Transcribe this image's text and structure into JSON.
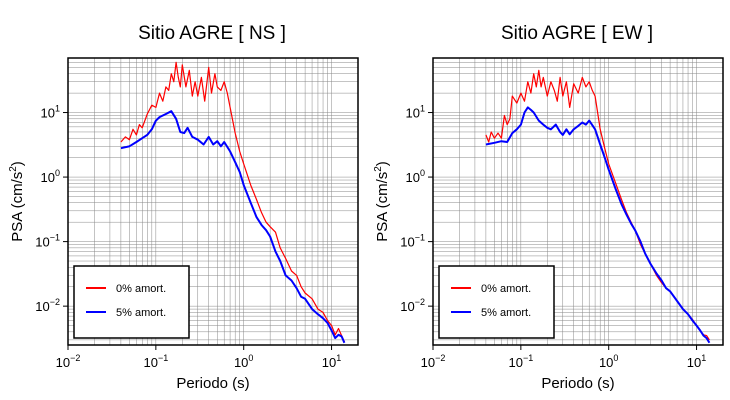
{
  "chart_data": [
    {
      "type": "line",
      "title": "Sitio AGRE [ NS ]",
      "xlabel": "Periodo (s)",
      "ylabel_base": "PSA (cm/s",
      "ylabel_sup": "2",
      "ylabel_end": ")",
      "xscale": "log",
      "yscale": "log",
      "xlim": [
        0.01,
        20
      ],
      "ylim": [
        0.0025,
        70
      ],
      "grid": true,
      "legend_position": "bottom-left",
      "x_ticks": [
        {
          "base": "10",
          "exp": "−2"
        },
        {
          "base": "10",
          "exp": "−1"
        },
        {
          "base": "10",
          "exp": "0"
        },
        {
          "base": "10",
          "exp": "1"
        }
      ],
      "y_ticks": [
        {
          "base": "10",
          "exp": "−2"
        },
        {
          "base": "10",
          "exp": "−1"
        },
        {
          "base": "10",
          "exp": "0"
        },
        {
          "base": "10",
          "exp": "1"
        }
      ],
      "series": [
        {
          "name": "0% amort.",
          "color": "#ff0000",
          "x": [
            0.04,
            0.045,
            0.05,
            0.055,
            0.06,
            0.065,
            0.07,
            0.08,
            0.09,
            0.1,
            0.11,
            0.12,
            0.13,
            0.14,
            0.15,
            0.16,
            0.17,
            0.18,
            0.19,
            0.2,
            0.22,
            0.24,
            0.26,
            0.28,
            0.3,
            0.33,
            0.36,
            0.4,
            0.43,
            0.47,
            0.5,
            0.55,
            0.6,
            0.65,
            0.7,
            0.8,
            0.9,
            1.0,
            1.2,
            1.4,
            1.6,
            1.8,
            2.0,
            2.3,
            2.6,
            3.0,
            3.5,
            4.0,
            4.5,
            5.0,
            6.0,
            7.0,
            8.0,
            9.0,
            10.0,
            11.0,
            12.0,
            13.0,
            14.0
          ],
          "y": [
            3.5,
            4.2,
            3.8,
            5.5,
            4.5,
            6.5,
            5.8,
            9.5,
            13,
            12,
            20,
            15,
            25,
            22,
            40,
            30,
            60,
            35,
            25,
            55,
            25,
            45,
            18,
            30,
            18,
            35,
            15,
            50,
            20,
            40,
            25,
            22,
            30,
            20,
            12,
            4.8,
            2.5,
            1.6,
            0.75,
            0.45,
            0.28,
            0.2,
            0.17,
            0.14,
            0.08,
            0.055,
            0.035,
            0.03,
            0.02,
            0.016,
            0.013,
            0.009,
            0.008,
            0.006,
            0.005,
            0.0036,
            0.0045,
            0.0035,
            0.0028
          ]
        },
        {
          "name": "5% amort.",
          "color": "#0000ff",
          "x": [
            0.04,
            0.05,
            0.06,
            0.07,
            0.08,
            0.09,
            0.1,
            0.11,
            0.12,
            0.13,
            0.15,
            0.17,
            0.19,
            0.21,
            0.23,
            0.26,
            0.3,
            0.35,
            0.4,
            0.45,
            0.5,
            0.55,
            0.6,
            0.7,
            0.8,
            0.9,
            1.0,
            1.2,
            1.4,
            1.6,
            1.8,
            2.0,
            2.3,
            2.6,
            3.0,
            3.5,
            4.0,
            4.5,
            5.0,
            6.0,
            7.0,
            8.0,
            9.0,
            10.0,
            11.0,
            12.0,
            13.0,
            14.0
          ],
          "y": [
            2.8,
            3.0,
            3.5,
            4.0,
            4.5,
            5.5,
            7.5,
            8.5,
            9.0,
            9.5,
            10.5,
            8.0,
            5.0,
            4.8,
            5.8,
            4.2,
            3.8,
            3.2,
            4.2,
            3.2,
            3.6,
            3.0,
            3.5,
            2.5,
            1.7,
            1.2,
            0.75,
            0.4,
            0.24,
            0.18,
            0.15,
            0.12,
            0.07,
            0.05,
            0.03,
            0.025,
            0.019,
            0.014,
            0.013,
            0.009,
            0.0075,
            0.0065,
            0.0055,
            0.0042,
            0.0032,
            0.0036,
            0.0034,
            0.0027
          ]
        }
      ]
    },
    {
      "type": "line",
      "title": "Sitio AGRE [ EW ]",
      "xlabel": "Periodo (s)",
      "ylabel_base": "PSA (cm/s",
      "ylabel_sup": "2",
      "ylabel_end": ")",
      "xscale": "log",
      "yscale": "log",
      "xlim": [
        0.01,
        20
      ],
      "ylim": [
        0.0025,
        70
      ],
      "grid": true,
      "legend_position": "bottom-left",
      "x_ticks": [
        {
          "base": "10",
          "exp": "−2"
        },
        {
          "base": "10",
          "exp": "−1"
        },
        {
          "base": "10",
          "exp": "0"
        },
        {
          "base": "10",
          "exp": "1"
        }
      ],
      "y_ticks": [
        {
          "base": "10",
          "exp": "−2"
        },
        {
          "base": "10",
          "exp": "−1"
        },
        {
          "base": "10",
          "exp": "0"
        },
        {
          "base": "10",
          "exp": "1"
        }
      ],
      "series": [
        {
          "name": "0% amort.",
          "color": "#ff0000",
          "x": [
            0.04,
            0.043,
            0.046,
            0.05,
            0.055,
            0.06,
            0.065,
            0.07,
            0.075,
            0.08,
            0.09,
            0.1,
            0.11,
            0.12,
            0.13,
            0.14,
            0.15,
            0.16,
            0.17,
            0.18,
            0.2,
            0.22,
            0.24,
            0.26,
            0.28,
            0.3,
            0.33,
            0.36,
            0.4,
            0.45,
            0.5,
            0.55,
            0.6,
            0.65,
            0.7,
            0.8,
            0.9,
            1.0,
            1.2,
            1.4,
            1.6,
            1.8,
            2.0,
            2.3,
            2.6,
            3.0,
            3.5,
            4.0,
            4.5,
            5.0,
            6.0,
            7.0,
            8.0,
            9.0,
            10.0,
            11.0,
            12.0,
            13.0,
            14.0
          ],
          "y": [
            4.5,
            3.5,
            5.0,
            4.0,
            4.8,
            4.0,
            9.0,
            6.5,
            8.0,
            18,
            14,
            20,
            15,
            30,
            20,
            40,
            25,
            45,
            25,
            35,
            18,
            30,
            22,
            15,
            35,
            18,
            30,
            12,
            28,
            20,
            35,
            25,
            30,
            22,
            18,
            5.5,
            2.8,
            1.6,
            0.8,
            0.45,
            0.28,
            0.2,
            0.15,
            0.09,
            0.065,
            0.045,
            0.03,
            0.023,
            0.019,
            0.017,
            0.012,
            0.009,
            0.0075,
            0.0062,
            0.005,
            0.0042,
            0.0036,
            0.0035,
            0.003
          ]
        },
        {
          "name": "5% amort.",
          "color": "#0000ff",
          "x": [
            0.04,
            0.05,
            0.06,
            0.07,
            0.08,
            0.09,
            0.1,
            0.11,
            0.12,
            0.13,
            0.14,
            0.16,
            0.18,
            0.2,
            0.22,
            0.25,
            0.28,
            0.3,
            0.33,
            0.36,
            0.4,
            0.45,
            0.5,
            0.55,
            0.6,
            0.7,
            0.8,
            0.9,
            1.0,
            1.2,
            1.4,
            1.6,
            1.8,
            2.0,
            2.3,
            2.6,
            3.0,
            3.5,
            4.0,
            4.5,
            5.0,
            6.0,
            7.0,
            8.0,
            9.0,
            10.0,
            11.0,
            12.0,
            13.0,
            14.0
          ],
          "y": [
            3.2,
            3.4,
            3.6,
            3.5,
            4.8,
            5.5,
            6.5,
            10,
            12,
            11,
            10,
            7.5,
            6.5,
            5.8,
            5.5,
            6.5,
            5.0,
            4.5,
            5.5,
            4.6,
            5.5,
            6.2,
            7.0,
            6.5,
            7.5,
            5.5,
            3.2,
            2.0,
            1.3,
            0.65,
            0.38,
            0.26,
            0.19,
            0.15,
            0.1,
            0.065,
            0.045,
            0.032,
            0.025,
            0.019,
            0.017,
            0.012,
            0.009,
            0.0075,
            0.006,
            0.005,
            0.0042,
            0.0035,
            0.0032,
            0.0027
          ]
        }
      ]
    }
  ]
}
